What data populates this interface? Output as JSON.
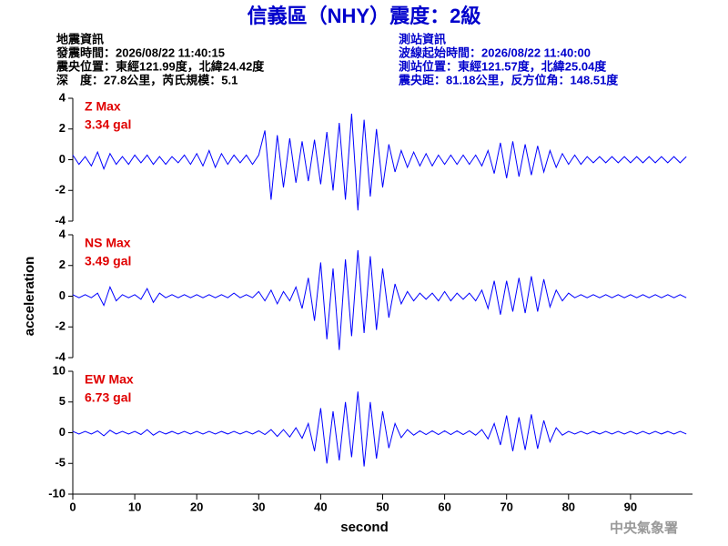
{
  "header": {
    "title": "信義區（NHY）震度：2級",
    "left": [
      "地震資訊",
      "發震時間：2026/08/22 11:40:15",
      "震央位置：東經121.99度，北緯24.42度",
      "深　度：27.8公里，芮氏規模：5.1"
    ],
    "right": [
      "測站資訊",
      "波線起始時間：2026/08/22 11:40:00",
      "測站位置：東經121.57度，北緯25.04度",
      "震央距：81.18公里，反方位角：148.51度"
    ],
    "footer": "中央氣象署"
  },
  "chart_data": [
    {
      "type": "line",
      "annotations": [
        "Z Max",
        "3.34 gal"
      ],
      "ylim": [
        -4,
        4
      ],
      "yticks": [
        -4,
        -2,
        0,
        2,
        4
      ],
      "xlim": [
        0,
        100
      ],
      "x": [
        0,
        1,
        2,
        3,
        4,
        5,
        6,
        7,
        8,
        9,
        10,
        11,
        12,
        13,
        14,
        15,
        16,
        17,
        18,
        19,
        20,
        21,
        22,
        23,
        24,
        25,
        26,
        27,
        28,
        29,
        30,
        31,
        32,
        33,
        34,
        35,
        36,
        37,
        38,
        39,
        40,
        41,
        42,
        43,
        44,
        45,
        46,
        47,
        48,
        49,
        50,
        51,
        52,
        53,
        54,
        55,
        56,
        57,
        58,
        59,
        60,
        61,
        62,
        63,
        64,
        65,
        66,
        67,
        68,
        69,
        70,
        71,
        72,
        73,
        74,
        75,
        76,
        77,
        78,
        79,
        80,
        81,
        82,
        83,
        84,
        85,
        86,
        87,
        88,
        89,
        90,
        91,
        92,
        93,
        94,
        95,
        96,
        97,
        98,
        99
      ],
      "series": [
        {
          "name": "Z",
          "color": "#0000ff",
          "values": [
            0.3,
            -0.3,
            0.2,
            -0.4,
            0.5,
            -0.6,
            0.4,
            -0.3,
            0.2,
            -0.3,
            0.3,
            -0.2,
            0.3,
            -0.3,
            0.2,
            -0.3,
            0.2,
            -0.2,
            0.3,
            -0.3,
            0.4,
            -0.4,
            0.6,
            -0.5,
            0.4,
            -0.3,
            0.3,
            -0.2,
            0.3,
            -0.3,
            0.3,
            1.9,
            -2.6,
            1.6,
            -1.8,
            1.4,
            -1.5,
            1.2,
            -1.4,
            1.3,
            -1.6,
            1.8,
            -2.0,
            2.4,
            -2.6,
            3.0,
            -3.3,
            2.6,
            -2.4,
            2.0,
            -1.8,
            1.0,
            -0.8,
            0.6,
            -0.5,
            0.5,
            -0.4,
            0.4,
            -0.4,
            0.3,
            -0.3,
            0.3,
            -0.3,
            0.3,
            -0.3,
            0.3,
            -0.4,
            0.6,
            -0.9,
            1.1,
            -1.2,
            1.2,
            -1.1,
            1.0,
            -1.0,
            0.9,
            -0.8,
            0.6,
            -0.5,
            0.4,
            -0.3,
            0.3,
            -0.3,
            0.2,
            -0.2,
            0.2,
            -0.2,
            0.2,
            -0.2,
            0.2,
            -0.2,
            0.2,
            -0.2,
            0.2,
            -0.2,
            0.2,
            -0.2,
            0.2,
            -0.2,
            0.2
          ]
        }
      ]
    },
    {
      "type": "line",
      "annotations": [
        "NS Max",
        "3.49 gal"
      ],
      "ylabel": "acceleration",
      "ylim": [
        -4,
        4
      ],
      "yticks": [
        -4,
        -2,
        0,
        2,
        4
      ],
      "xlim": [
        0,
        100
      ],
      "x": [
        0,
        1,
        2,
        3,
        4,
        5,
        6,
        7,
        8,
        9,
        10,
        11,
        12,
        13,
        14,
        15,
        16,
        17,
        18,
        19,
        20,
        21,
        22,
        23,
        24,
        25,
        26,
        27,
        28,
        29,
        30,
        31,
        32,
        33,
        34,
        35,
        36,
        37,
        38,
        39,
        40,
        41,
        42,
        43,
        44,
        45,
        46,
        47,
        48,
        49,
        50,
        51,
        52,
        53,
        54,
        55,
        56,
        57,
        58,
        59,
        60,
        61,
        62,
        63,
        64,
        65,
        66,
        67,
        68,
        69,
        70,
        71,
        72,
        73,
        74,
        75,
        76,
        77,
        78,
        79,
        80,
        81,
        82,
        83,
        84,
        85,
        86,
        87,
        88,
        89,
        90,
        91,
        92,
        93,
        94,
        95,
        96,
        97,
        98,
        99
      ],
      "series": [
        {
          "name": "NS",
          "color": "#0000ff",
          "values": [
            0.1,
            -0.1,
            0.1,
            -0.1,
            0.2,
            -0.6,
            0.6,
            -0.3,
            0.1,
            -0.1,
            0.1,
            -0.2,
            0.5,
            -0.4,
            0.2,
            -0.1,
            0.1,
            -0.1,
            0.1,
            -0.1,
            0.1,
            -0.1,
            0.1,
            -0.1,
            0.1,
            -0.1,
            0.2,
            -0.1,
            0.1,
            -0.1,
            0.3,
            -0.3,
            0.4,
            -0.5,
            0.3,
            -0.3,
            0.6,
            -0.8,
            1.2,
            -1.6,
            2.2,
            -2.8,
            1.8,
            -3.5,
            2.4,
            -2.6,
            3.0,
            -2.4,
            2.6,
            -2.2,
            1.8,
            -1.4,
            0.8,
            -0.5,
            0.3,
            -0.3,
            0.2,
            -0.2,
            0.2,
            -0.3,
            0.3,
            -0.3,
            0.2,
            -0.2,
            0.2,
            -0.3,
            0.4,
            -0.8,
            1.0,
            -1.2,
            1.0,
            -1.0,
            1.2,
            -1.1,
            1.3,
            -1.0,
            1.1,
            -0.7,
            0.4,
            -0.3,
            0.2,
            -0.1,
            0.1,
            -0.1,
            0.1,
            -0.1,
            0.1,
            -0.1,
            0.1,
            -0.1,
            0.1,
            -0.1,
            0.1,
            -0.1,
            0.1,
            -0.1,
            0.1,
            -0.1,
            0.1,
            -0.1
          ]
        }
      ]
    },
    {
      "type": "line",
      "annotations": [
        "EW Max",
        "6.73 gal"
      ],
      "xlabel": "second",
      "ylim": [
        -10,
        10
      ],
      "yticks": [
        -10,
        -5,
        0,
        5,
        10
      ],
      "xlim": [
        0,
        100
      ],
      "xticks": [
        0,
        10,
        20,
        30,
        40,
        50,
        60,
        70,
        80,
        90
      ],
      "x": [
        0,
        1,
        2,
        3,
        4,
        5,
        6,
        7,
        8,
        9,
        10,
        11,
        12,
        13,
        14,
        15,
        16,
        17,
        18,
        19,
        20,
        21,
        22,
        23,
        24,
        25,
        26,
        27,
        28,
        29,
        30,
        31,
        32,
        33,
        34,
        35,
        36,
        37,
        38,
        39,
        40,
        41,
        42,
        43,
        44,
        45,
        46,
        47,
        48,
        49,
        50,
        51,
        52,
        53,
        54,
        55,
        56,
        57,
        58,
        59,
        60,
        61,
        62,
        63,
        64,
        65,
        66,
        67,
        68,
        69,
        70,
        71,
        72,
        73,
        74,
        75,
        76,
        77,
        78,
        79,
        80,
        81,
        82,
        83,
        84,
        85,
        86,
        87,
        88,
        89,
        90,
        91,
        92,
        93,
        94,
        95,
        96,
        97,
        98,
        99
      ],
      "series": [
        {
          "name": "EW",
          "color": "#0000ff",
          "values": [
            0.2,
            -0.2,
            0.2,
            -0.2,
            0.3,
            -0.5,
            0.4,
            -0.2,
            0.2,
            -0.2,
            0.2,
            -0.3,
            0.5,
            -0.4,
            0.2,
            -0.2,
            0.2,
            -0.2,
            0.2,
            -0.2,
            0.2,
            -0.2,
            0.2,
            -0.2,
            0.2,
            -0.2,
            0.2,
            -0.2,
            0.2,
            -0.2,
            0.3,
            -0.3,
            0.5,
            -0.6,
            0.5,
            -0.7,
            0.8,
            -0.9,
            1.5,
            -3.0,
            4.0,
            -5.0,
            3.5,
            -4.5,
            5.0,
            -4.0,
            6.7,
            -5.5,
            5.0,
            -4.2,
            3.5,
            -2.5,
            1.5,
            -0.8,
            0.5,
            -0.4,
            0.3,
            -0.3,
            0.3,
            -0.3,
            0.3,
            -0.3,
            0.3,
            -0.3,
            0.3,
            -0.4,
            0.5,
            -1.0,
            1.5,
            -2.0,
            2.8,
            -3.0,
            2.5,
            -2.8,
            3.0,
            -2.6,
            2.0,
            -1.5,
            0.8,
            -0.4,
            0.2,
            -0.2,
            0.2,
            -0.2,
            0.2,
            -0.2,
            0.2,
            -0.2,
            0.2,
            -0.2,
            0.2,
            -0.2,
            0.2,
            -0.2,
            0.2,
            -0.2,
            0.2,
            -0.2,
            0.2,
            -0.2
          ]
        }
      ]
    }
  ]
}
